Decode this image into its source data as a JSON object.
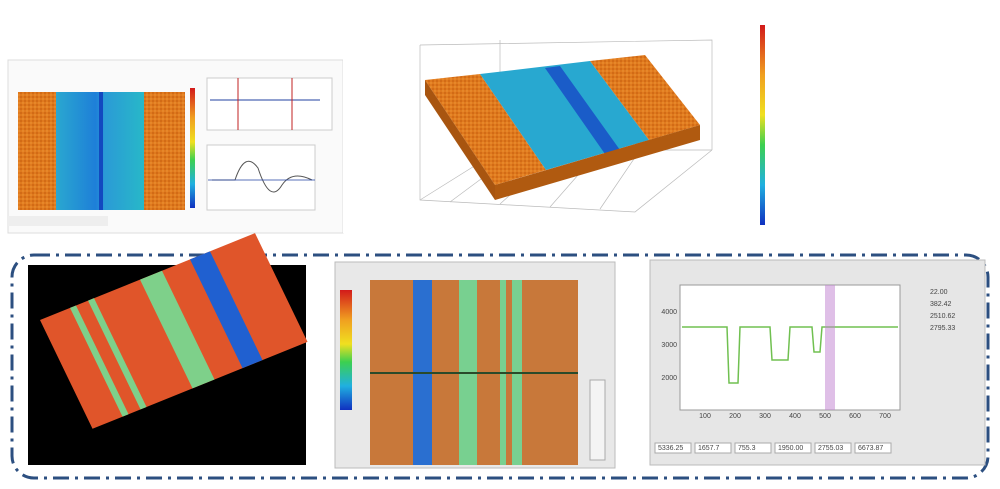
{
  "profile_panel": {
    "y_ticks": [
      "4000",
      "3000",
      "2000"
    ],
    "x_ticks": [
      "100",
      "200",
      "300",
      "400",
      "500",
      "600",
      "700"
    ],
    "readouts": [
      "22.00",
      "382.42",
      "2510.62",
      "2795.33"
    ],
    "table_values": [
      "5336.25",
      "1657.7",
      "755.3",
      "1950.00",
      "2755.03",
      "6673.87"
    ]
  }
}
